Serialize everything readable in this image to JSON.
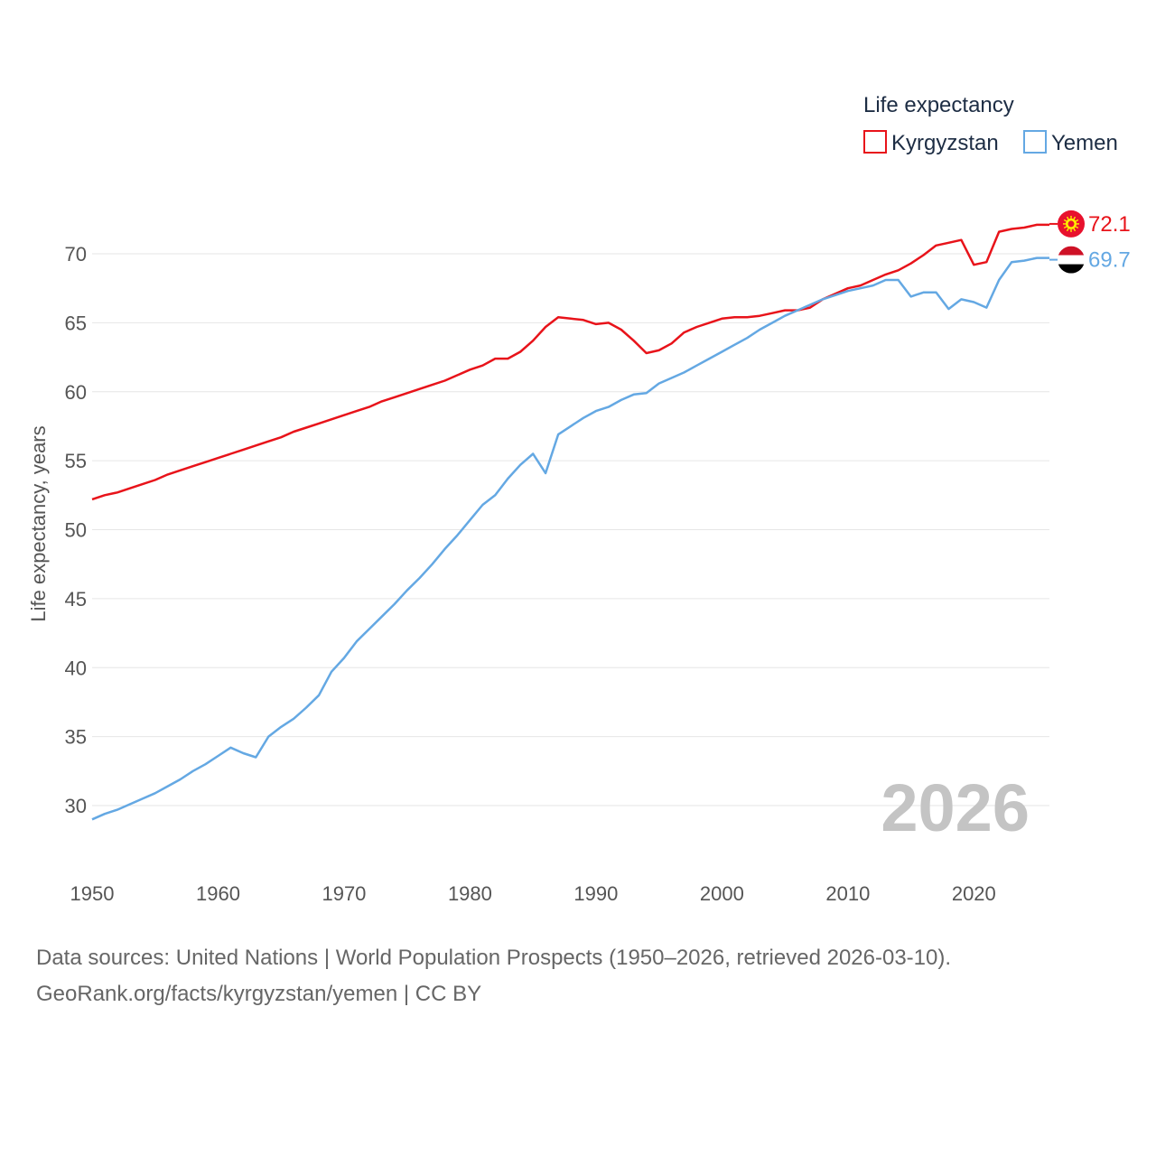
{
  "chart_data": {
    "type": "line",
    "title": "Life expectancy",
    "xlabel": "",
    "ylabel": "Life expectancy, years",
    "xlim": [
      1950,
      2026
    ],
    "ylim": [
      27,
      74
    ],
    "yticks": [
      30,
      35,
      40,
      45,
      50,
      55,
      60,
      65,
      70
    ],
    "xticks": [
      1950,
      1960,
      1970,
      1980,
      1990,
      2000,
      2010,
      2020
    ],
    "grid": true,
    "legend_position": "top-right",
    "current_year": "2026",
    "x": [
      1950,
      1951,
      1952,
      1953,
      1954,
      1955,
      1956,
      1957,
      1958,
      1959,
      1960,
      1961,
      1962,
      1963,
      1964,
      1965,
      1966,
      1967,
      1968,
      1969,
      1970,
      1971,
      1972,
      1973,
      1974,
      1975,
      1976,
      1977,
      1978,
      1979,
      1980,
      1981,
      1982,
      1983,
      1984,
      1985,
      1986,
      1987,
      1988,
      1989,
      1990,
      1991,
      1992,
      1993,
      1994,
      1995,
      1996,
      1997,
      1998,
      1999,
      2000,
      2001,
      2002,
      2003,
      2004,
      2005,
      2006,
      2007,
      2008,
      2009,
      2010,
      2011,
      2012,
      2013,
      2014,
      2015,
      2016,
      2017,
      2018,
      2019,
      2020,
      2021,
      2022,
      2023,
      2024,
      2025,
      2026
    ],
    "series": [
      {
        "name": "Kyrgyzstan",
        "color": "#e8131a",
        "end_label": "72.1",
        "flag": "kyrgyzstan-flag",
        "values": [
          52.2,
          52.5,
          52.7,
          53.0,
          53.3,
          53.6,
          54.0,
          54.3,
          54.6,
          54.9,
          55.2,
          55.5,
          55.8,
          56.1,
          56.4,
          56.7,
          57.1,
          57.4,
          57.7,
          58.0,
          58.3,
          58.6,
          58.9,
          59.3,
          59.6,
          59.9,
          60.2,
          60.5,
          60.8,
          61.2,
          61.6,
          61.9,
          62.4,
          62.4,
          62.9,
          63.7,
          64.7,
          65.4,
          65.3,
          65.2,
          64.9,
          65.0,
          64.5,
          63.7,
          62.8,
          63.0,
          63.5,
          64.3,
          64.7,
          65.0,
          65.3,
          65.4,
          65.4,
          65.5,
          65.7,
          65.9,
          65.9,
          66.1,
          66.7,
          67.1,
          67.5,
          67.7,
          68.1,
          68.5,
          68.8,
          69.3,
          69.9,
          70.6,
          70.8,
          71.0,
          69.2,
          69.4,
          71.6,
          71.8,
          71.9,
          72.1,
          72.1
        ]
      },
      {
        "name": "Yemen",
        "color": "#64a8e3",
        "end_label": "69.7",
        "flag": "yemen-flag",
        "values": [
          29.0,
          29.4,
          29.7,
          30.1,
          30.5,
          30.9,
          31.4,
          31.9,
          32.5,
          33.0,
          33.6,
          34.2,
          33.8,
          33.5,
          35.0,
          35.7,
          36.3,
          37.1,
          38.0,
          39.7,
          40.7,
          41.9,
          42.8,
          43.7,
          44.6,
          45.6,
          46.5,
          47.5,
          48.6,
          49.6,
          50.7,
          51.8,
          52.5,
          53.7,
          54.7,
          55.5,
          54.1,
          56.9,
          57.5,
          58.1,
          58.6,
          58.9,
          59.4,
          59.8,
          59.9,
          60.6,
          61.0,
          61.4,
          61.9,
          62.4,
          62.9,
          63.4,
          63.9,
          64.5,
          65.0,
          65.5,
          65.9,
          66.3,
          66.7,
          67.0,
          67.3,
          67.5,
          67.7,
          68.1,
          68.1,
          66.9,
          67.2,
          67.2,
          66.0,
          66.7,
          66.5,
          66.1,
          68.1,
          69.4,
          69.5,
          69.7,
          69.7
        ]
      }
    ]
  },
  "source": {
    "line1": "Data sources: United Nations | World Population Prospects (1950–2026, retrieved 2026-03-10).",
    "line2": "GeoRank.org/facts/kyrgyzstan/yemen | CC BY"
  }
}
